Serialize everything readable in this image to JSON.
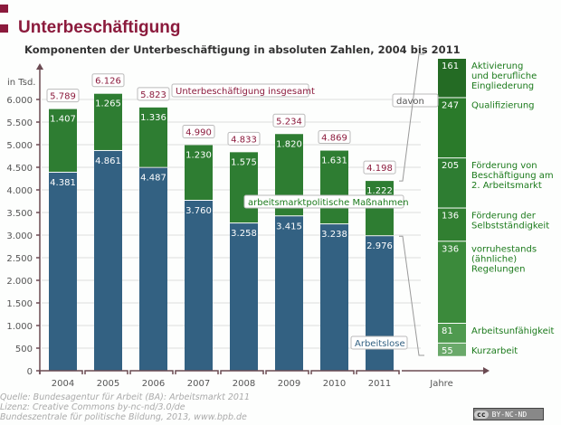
{
  "header": {
    "title": "Unterbeschäftigung",
    "subtitle": "Komponenten der Unterbeschäftigung in absoluten Zahlen, 2004 bis 2011"
  },
  "chart_data": {
    "type": "bar",
    "stacked": true,
    "title": "Unterbeschäftigung",
    "subtitle": "Komponenten der Unterbeschäftigung in absoluten Zahlen, 2004 bis 2011",
    "ylabel": "in Tsd.",
    "xlabel": "Jahre",
    "ylim": [
      0,
      6000
    ],
    "yticks": [
      0,
      500,
      1000,
      1500,
      2000,
      2500,
      3000,
      3500,
      4000,
      4500,
      5000,
      5500,
      6000
    ],
    "ytick_labels": [
      "0",
      "500",
      "1.000",
      "1.500",
      "2.000",
      "2.500",
      "3.000",
      "3.500",
      "4.000",
      "4.500",
      "5.000",
      "5.500",
      "6.000"
    ],
    "grid": true,
    "categories": [
      "2004",
      "2005",
      "2006",
      "2007",
      "2008",
      "2009",
      "2010",
      "2011"
    ],
    "series": [
      {
        "name": "Arbeitslose",
        "color": "#336182",
        "values": [
          4381,
          4861,
          4487,
          3760,
          3258,
          3415,
          3238,
          2976
        ],
        "labels": [
          "4.381",
          "4.861",
          "4.487",
          "3.760",
          "3.258",
          "3.415",
          "3.238",
          "2.976"
        ]
      },
      {
        "name": "arbeitsmarktpolitische Maßnahmen",
        "color": "#2e7d32",
        "values": [
          1407,
          1265,
          1336,
          1230,
          1575,
          1820,
          1631,
          1222
        ],
        "labels": [
          "1.407",
          "1.265",
          "1.336",
          "1.230",
          "1.575",
          "1.820",
          "1.631",
          "1.222"
        ]
      }
    ],
    "totals": {
      "name": "Unterbeschäftigung insgesamt",
      "values": [
        5789,
        6126,
        5823,
        4990,
        4833,
        5234,
        4869,
        4198
      ],
      "labels": [
        "5.789",
        "6.126",
        "5.823",
        "4.990",
        "4.833",
        "5.234",
        "4.869",
        "4.198"
      ]
    },
    "breakdown": {
      "label": "davon",
      "year": "2011",
      "total": 1222,
      "segments": [
        {
          "value": 161,
          "label": "161",
          "name": "Aktivierung und berufliche Eingliederung",
          "lines": [
            "Aktivierung",
            "und berufliche",
            "Eingliederung"
          ],
          "color": "#246b24"
        },
        {
          "value": 247,
          "label": "247",
          "name": "Qualifizierung",
          "lines": [
            "Qualifizierung"
          ],
          "color": "#2a7a2a"
        },
        {
          "value": 205,
          "label": "205",
          "name": "Förderung von Beschäftigung am 2. Arbeitsmarkt",
          "lines": [
            "Förderung von",
            "Beschäftigung am",
            "2. Arbeitsmarkt"
          ],
          "color": "#2e7d32"
        },
        {
          "value": 136,
          "label": "136",
          "name": "Förderung der Selbstständigkeit",
          "lines": [
            "Förderung der",
            "Selbstständigkeit"
          ],
          "color": "#317f31"
        },
        {
          "value": 336,
          "label": "336",
          "name": "vorruhestands (ähnliche) Regelungen",
          "lines": [
            "vorruhestands",
            "(ähnliche)",
            "Regelungen"
          ],
          "color": "#3b8a3b"
        },
        {
          "value": 81,
          "label": "81",
          "name": "Arbeitsunfähigkeit",
          "lines": [
            "Arbeitsunfähigkeit"
          ],
          "color": "#4f9a4f"
        },
        {
          "value": 55,
          "label": "55",
          "name": "Kurzarbeit",
          "lines": [
            "Kurzarbeit"
          ],
          "color": "#6aa96a"
        }
      ]
    },
    "annotations": [
      "Unterbeschäftigung insgesamt",
      "arbeitsmarktpolitische Maßnahmen",
      "Arbeitslose",
      "davon"
    ]
  },
  "footer": {
    "lines": [
      "Quelle: Bundesagentur für Arbeit (BA): Arbeitsmarkt 2011",
      "Lizenz: Creative Commons  by-nc-nd/3.0/de",
      "Bundeszentrale für politische Bildung, 2013, www.bpb.de"
    ],
    "license_badge": "BY-NC-ND",
    "license_cc": "cc"
  },
  "colors": {
    "accent": "#8b1a3c",
    "axis": "#6b4a52",
    "grid": "#dddddd"
  }
}
